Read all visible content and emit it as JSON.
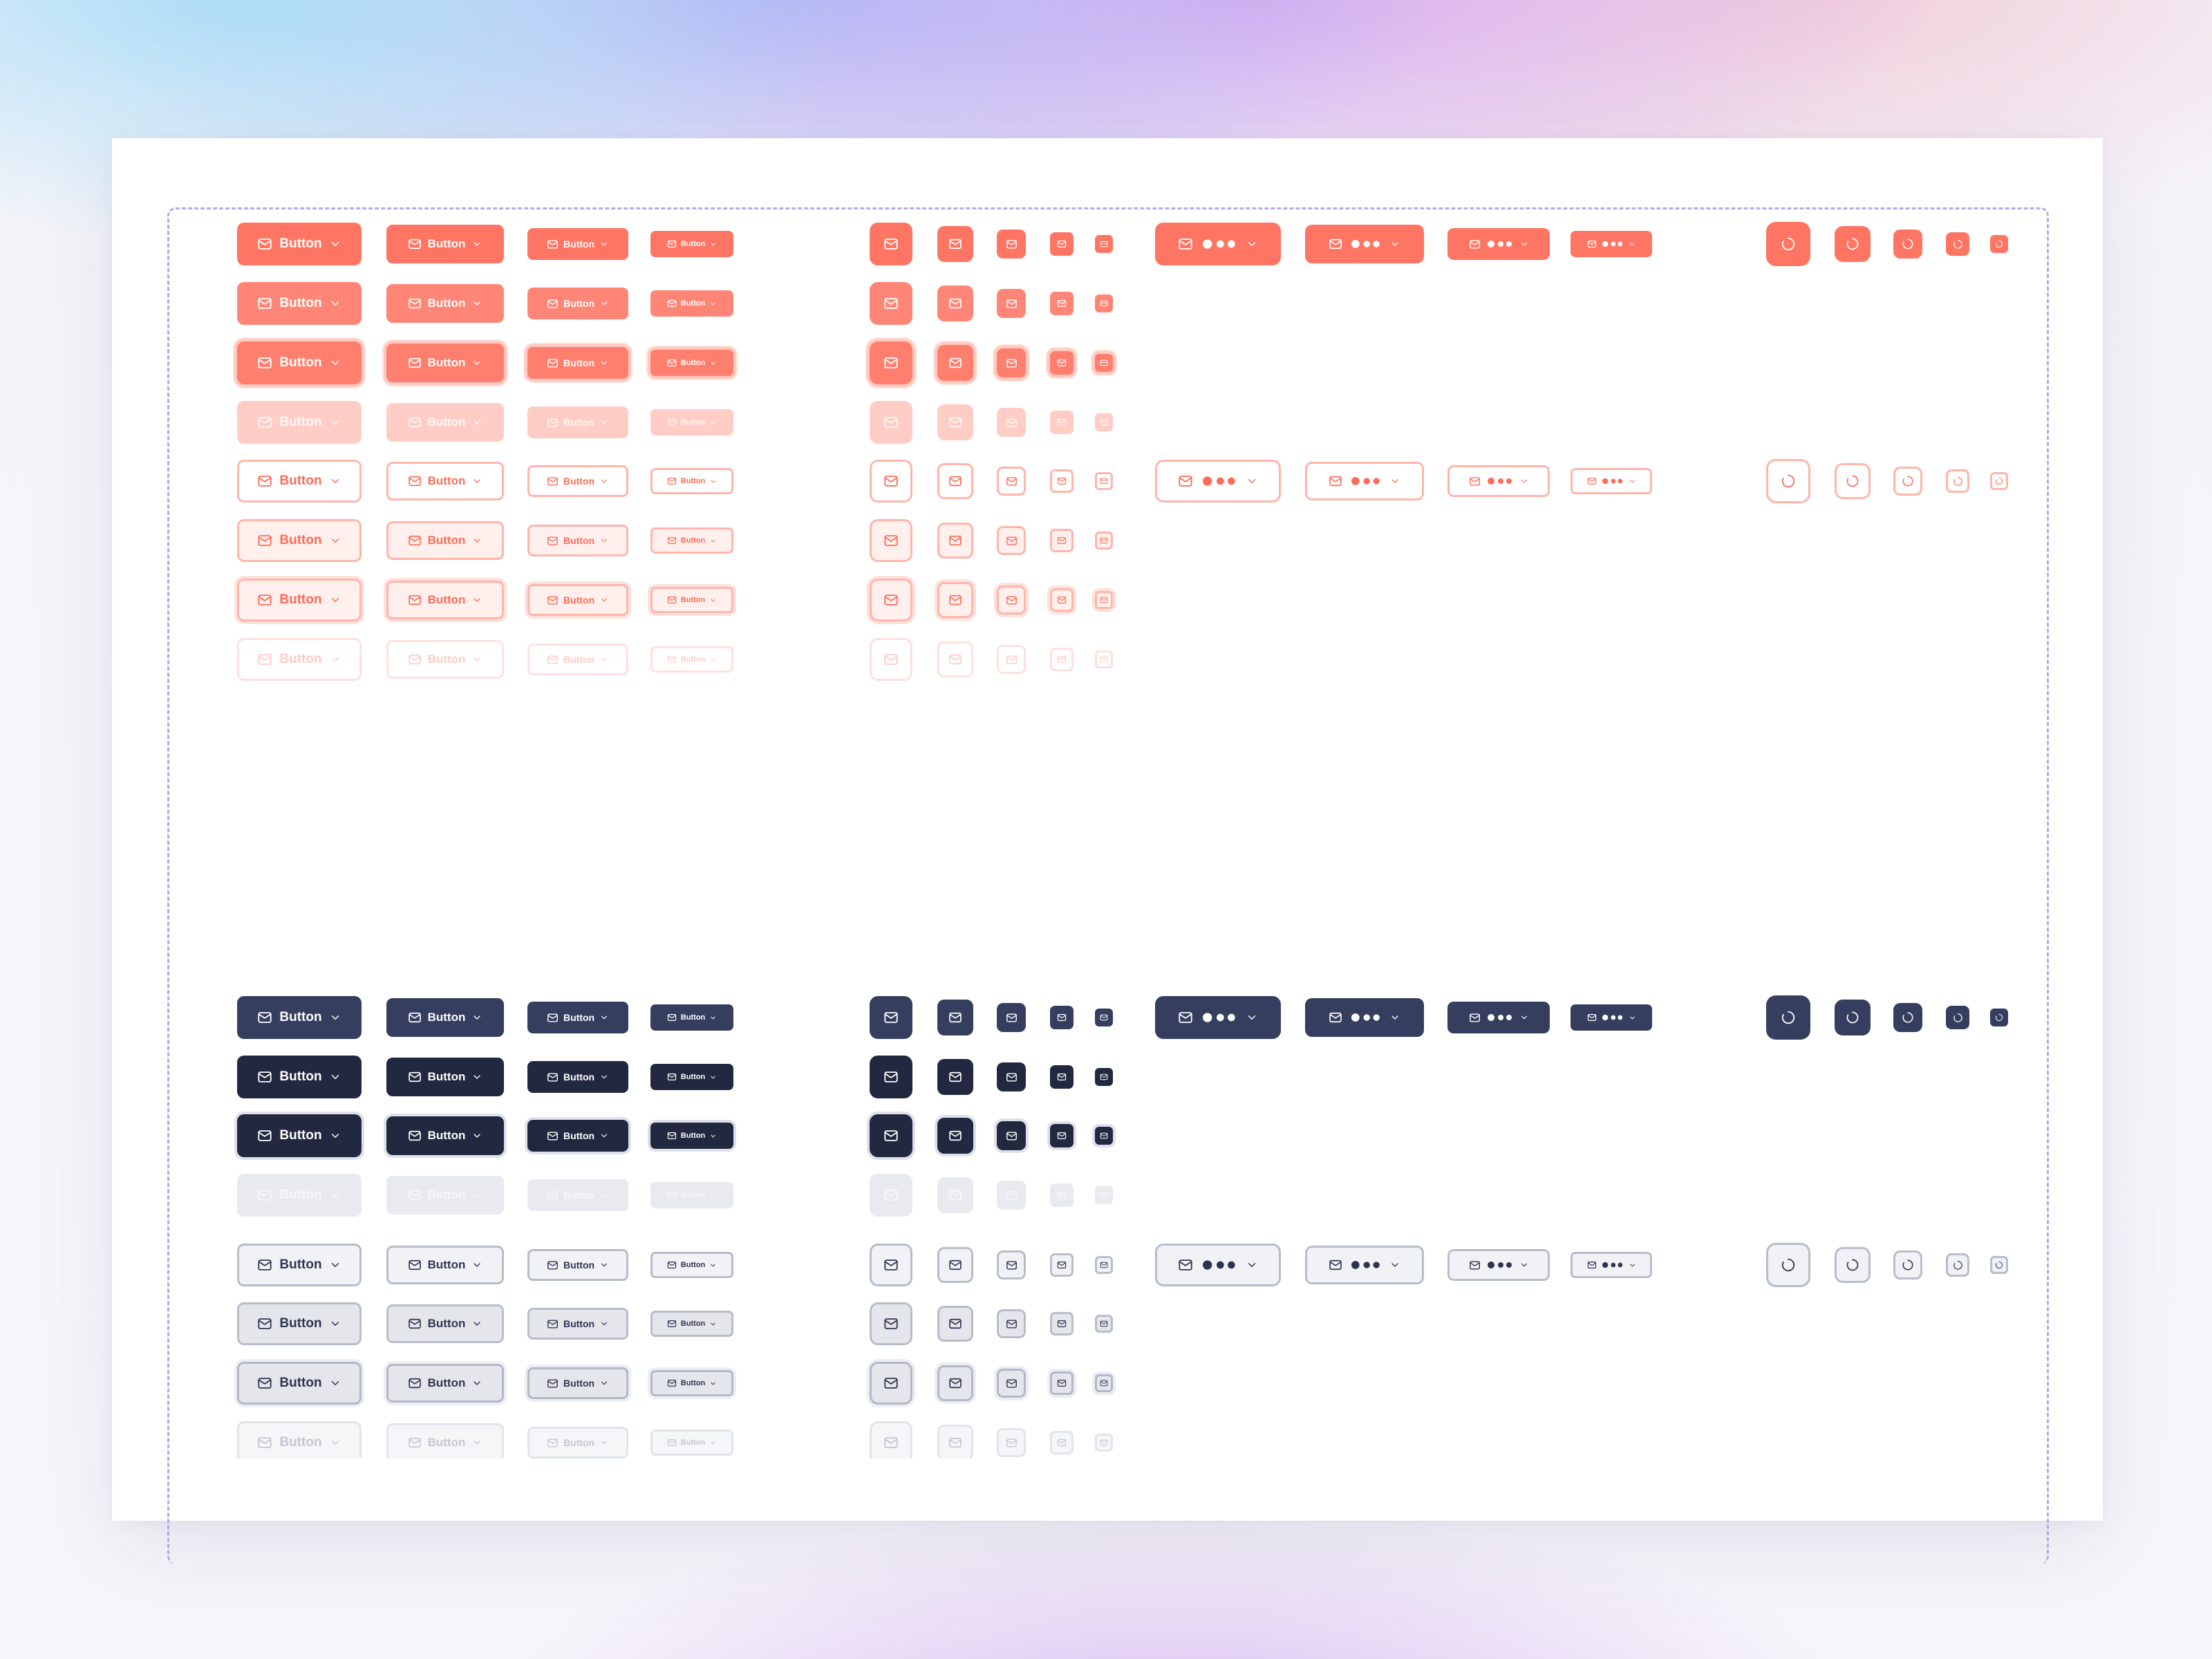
{
  "button_text": "Button",
  "icons": {
    "leading": "mail-icon",
    "trailing": "chevron-down-icon",
    "loading": "spinner-icon",
    "dots": "more-dots-icon"
  },
  "palette": {
    "coral": "#ff7563",
    "coral_outline": "#ff6b57",
    "navy": "#363e5f",
    "navy_dark": "#22283f",
    "gray_surface": "#f0f2f5",
    "guide_dash": "#b6a8ec"
  },
  "variants": [
    {
      "color": "coral",
      "kind": "filled",
      "states": [
        "default",
        "hover",
        "focus",
        "disabled"
      ]
    },
    {
      "color": "coral",
      "kind": "outline",
      "states": [
        "default",
        "hover",
        "focus",
        "disabled"
      ]
    },
    {
      "color": "navy",
      "kind": "filled",
      "states": [
        "default",
        "hover",
        "focus",
        "disabled"
      ]
    },
    {
      "color": "gray",
      "kind": "outline",
      "states": [
        "default",
        "hover",
        "focus",
        "disabled"
      ]
    }
  ],
  "sizes": [
    "xl",
    "lg",
    "md",
    "sm",
    "xs"
  ]
}
